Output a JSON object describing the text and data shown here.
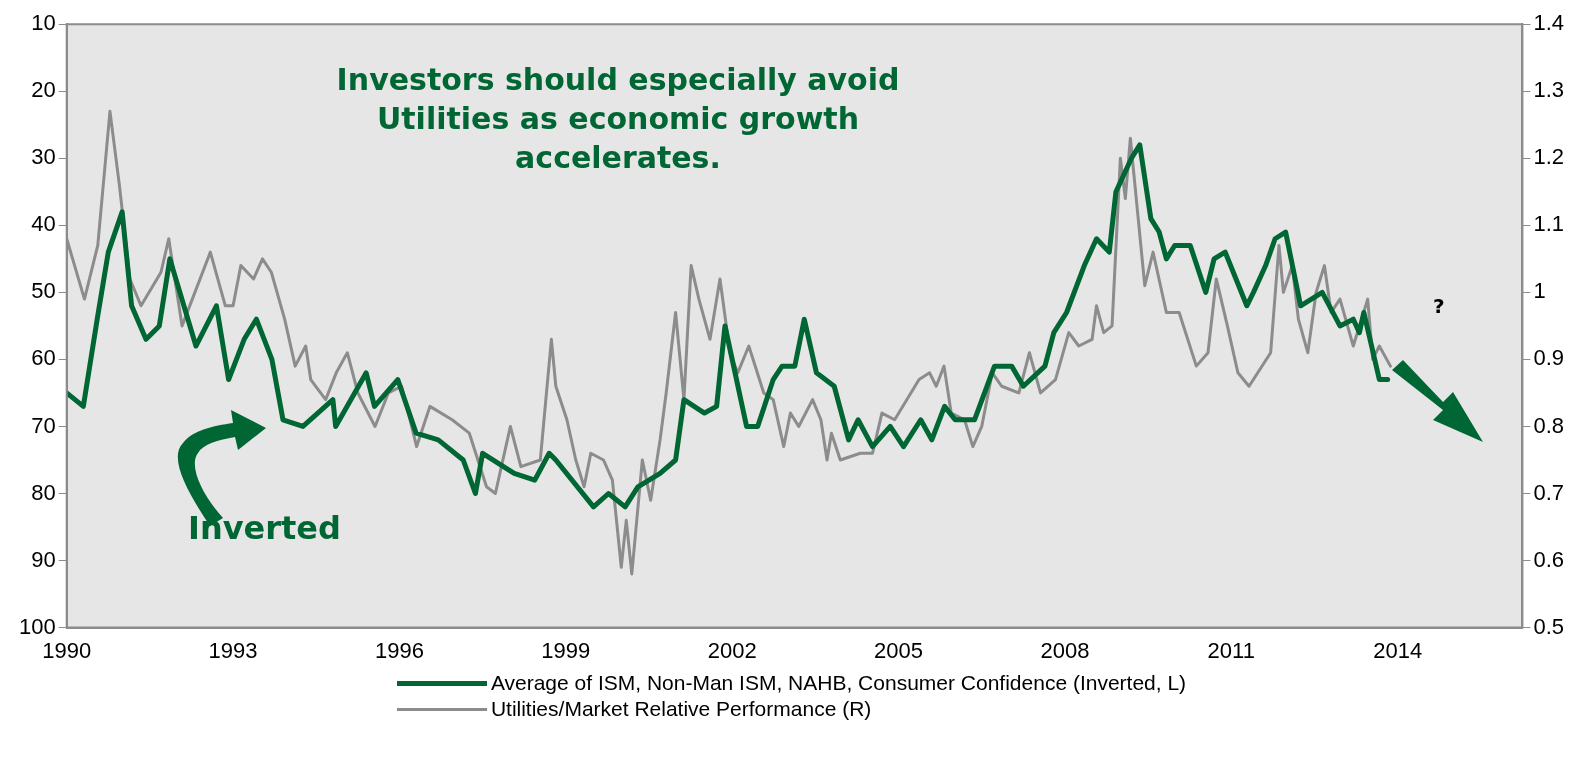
{
  "chart_data": {
    "type": "line",
    "xlim": [
      1990,
      2016.25
    ],
    "xticks": [
      1990,
      1993,
      1996,
      1999,
      2002,
      2005,
      2008,
      2011,
      2014
    ],
    "ylim": [
      100,
      10
    ],
    "yticks": [
      10,
      20,
      30,
      40,
      50,
      60,
      70,
      80,
      90,
      100
    ],
    "y2lim": [
      0.5,
      1.4
    ],
    "y2ticks": [
      0.5,
      0.6,
      0.7,
      0.8,
      0.9,
      1,
      1.1,
      1.2,
      1.3,
      1.4
    ],
    "grid": false,
    "legend": "bottom",
    "marker": "none",
    "annotations": [
      "Investors should especially avoid\nUtilities as economic growth\naccelerates.",
      "Inverted",
      "?"
    ],
    "series": [
      {
        "name": "Average of ISM, Non-Man ISM, NAHB, Consumer Confidence (Inverted, L)",
        "color": "#006633",
        "axis": "y",
        "x": [
          1990.0,
          1990.3,
          1990.55,
          1990.75,
          1991.0,
          1991.17,
          1991.43,
          1991.67,
          1991.86,
          1992.33,
          1992.7,
          1992.92,
          1993.2,
          1993.42,
          1993.7,
          1993.9,
          1994.26,
          1994.8,
          1994.85,
          1995.4,
          1995.55,
          1995.97,
          1996.3,
          1996.7,
          1997.15,
          1997.37,
          1997.5,
          1998.07,
          1998.44,
          1998.7,
          1998.82,
          1999.5,
          1999.77,
          2000.07,
          2000.3,
          2000.7,
          2000.98,
          2001.13,
          2001.5,
          2001.72,
          2001.87,
          2002.26,
          2002.46,
          2002.74,
          2002.9,
          2003.13,
          2003.3,
          2003.52,
          2003.84,
          2004.1,
          2004.27,
          2004.53,
          2004.85,
          2005.09,
          2005.4,
          2005.6,
          2005.83,
          2006.02,
          2006.37,
          2006.73,
          2007.04,
          2007.25,
          2007.64,
          2007.8,
          2008.03,
          2008.35,
          2008.57,
          2008.8,
          2008.92,
          2009.2,
          2009.35,
          2009.55,
          2009.7,
          2009.83,
          2009.98,
          2010.26,
          2010.54,
          2010.69,
          2010.89,
          2011.28,
          2011.4,
          2011.62,
          2011.79,
          2011.98,
          2012.25,
          2012.64,
          2012.96,
          2013.2,
          2013.31,
          2013.39,
          2013.67,
          2013.82
        ],
        "values": [
          65,
          67,
          54,
          44,
          38,
          52,
          57,
          55,
          45,
          58,
          52,
          63,
          57,
          54,
          60,
          69,
          70,
          66,
          70,
          62,
          67,
          63,
          71,
          72,
          75,
          80,
          74,
          77,
          78,
          74,
          75,
          82,
          80,
          82,
          79,
          77,
          75,
          66,
          68,
          67,
          55,
          70,
          70,
          63,
          61,
          61,
          54,
          62,
          64,
          72,
          69,
          73,
          70,
          73,
          69,
          72,
          67,
          69,
          69,
          61,
          61,
          64,
          61,
          56,
          53,
          46,
          42,
          44,
          35,
          30,
          28,
          39,
          41,
          45,
          43,
          43,
          50,
          45,
          44,
          52,
          50,
          46,
          42,
          41,
          52,
          50,
          55,
          54,
          56,
          53,
          63,
          63
        ]
      },
      {
        "name": "Utilities/Market Relative Performance (R)",
        "color": "#8c8c8c",
        "axis": "y2",
        "x": [
          1990.0,
          1990.32,
          1990.56,
          1990.78,
          1990.95,
          1991.14,
          1991.34,
          1991.7,
          1991.84,
          1992.08,
          1992.59,
          1992.86,
          1993.0,
          1993.14,
          1993.37,
          1993.53,
          1993.69,
          1993.93,
          1994.12,
          1994.31,
          1994.4,
          1994.67,
          1994.86,
          1995.06,
          1995.25,
          1995.56,
          1995.8,
          1996.04,
          1996.31,
          1996.55,
          1996.95,
          1997.26,
          1997.57,
          1997.73,
          1998.0,
          1998.19,
          1998.54,
          1998.74,
          1998.82,
          1999.02,
          1999.18,
          1999.33,
          1999.45,
          1999.68,
          1999.84,
          2000.0,
          2000.09,
          2000.19,
          2000.38,
          2000.53,
          2000.7,
          2000.81,
          2000.98,
          2001.13,
          2001.26,
          2001.4,
          2001.6,
          2001.78,
          2001.96,
          2002.1,
          2002.3,
          2002.57,
          2002.74,
          2002.93,
          2003.05,
          2003.2,
          2003.45,
          2003.6,
          2003.71,
          2003.79,
          2003.95,
          2004.31,
          2004.53,
          2004.7,
          2004.93,
          2005.37,
          2005.56,
          2005.68,
          2005.82,
          2005.95,
          2006.19,
          2006.34,
          2006.5,
          2006.69,
          2006.86,
          2007.17,
          2007.36,
          2007.56,
          2007.83,
          2008.07,
          2008.25,
          2008.49,
          2008.57,
          2008.7,
          2008.85,
          2009.0,
          2009.09,
          2009.18,
          2009.44,
          2009.59,
          2009.83,
          2010.06,
          2010.37,
          2010.58,
          2010.73,
          2010.93,
          2011.12,
          2011.32,
          2011.71,
          2011.86,
          2011.94,
          2012.1,
          2012.21,
          2012.38,
          2012.53,
          2012.68,
          2012.8,
          2012.96,
          2013.2,
          2013.46,
          2013.55,
          2013.67,
          2013.87
        ],
        "values": [
          1.08,
          0.99,
          1.07,
          1.27,
          1.16,
          1.02,
          0.98,
          1.03,
          1.08,
          0.95,
          1.06,
          0.98,
          0.98,
          1.04,
          1.02,
          1.05,
          1.03,
          0.96,
          0.89,
          0.92,
          0.87,
          0.84,
          0.88,
          0.91,
          0.85,
          0.8,
          0.85,
          0.86,
          0.77,
          0.83,
          0.81,
          0.79,
          0.71,
          0.7,
          0.8,
          0.74,
          0.75,
          0.93,
          0.86,
          0.81,
          0.75,
          0.71,
          0.76,
          0.75,
          0.72,
          0.59,
          0.66,
          0.58,
          0.75,
          0.69,
          0.78,
          0.85,
          0.97,
          0.84,
          1.04,
          0.99,
          0.93,
          1.02,
          0.91,
          0.88,
          0.92,
          0.85,
          0.84,
          0.77,
          0.82,
          0.8,
          0.84,
          0.81,
          0.75,
          0.79,
          0.75,
          0.76,
          0.76,
          0.82,
          0.81,
          0.87,
          0.88,
          0.86,
          0.89,
          0.82,
          0.81,
          0.77,
          0.8,
          0.88,
          0.86,
          0.85,
          0.91,
          0.85,
          0.87,
          0.94,
          0.92,
          0.93,
          0.98,
          0.94,
          0.95,
          1.2,
          1.14,
          1.23,
          1.01,
          1.06,
          0.97,
          0.97,
          0.89,
          0.91,
          1.02,
          0.95,
          0.88,
          0.86,
          0.91,
          1.07,
          1.0,
          1.04,
          0.96,
          0.91,
          1.0,
          1.04,
          0.97,
          0.99,
          0.92,
          0.99,
          0.9,
          0.92,
          0.89
        ]
      }
    ]
  }
}
